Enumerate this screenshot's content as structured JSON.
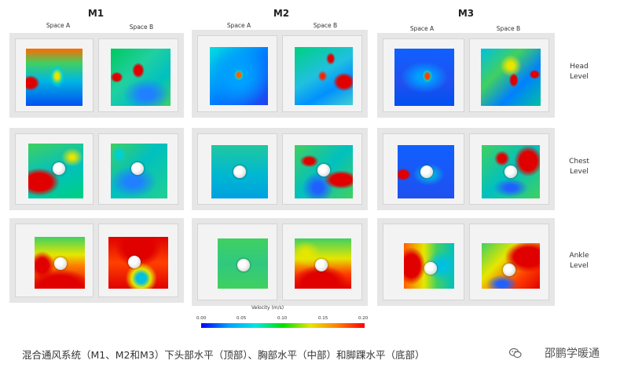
{
  "columns": [
    {
      "title": "M1",
      "spaces": [
        "Space A",
        "Space B"
      ]
    },
    {
      "title": "M2",
      "spaces": [
        "Space A",
        "Space B"
      ]
    },
    {
      "title": "M3",
      "spaces": [
        "Space A",
        "Space B"
      ]
    }
  ],
  "levels": [
    {
      "line1": "Head",
      "line2": "Level"
    },
    {
      "line1": "Chest",
      "line2": "Level"
    },
    {
      "line1": "Ankle",
      "line2": "Level"
    }
  ],
  "colorbar": {
    "title": "Velocity (m/s)",
    "ticks": [
      "0.00",
      "0.05",
      "0.10",
      "0.15",
      "0.20"
    ],
    "colors": [
      "#0000ff",
      "#00a0ff",
      "#00e6e6",
      "#00e000",
      "#e6e600",
      "#ff8000",
      "#ff0000"
    ]
  },
  "caption": "混合通风系统（M1、M2和M3）下头部水平（顶部）、胸部水平（中部）和脚踝水平（底部）",
  "brand": "邵鹏学暖通",
  "brand_icon": "wechat-icon"
}
